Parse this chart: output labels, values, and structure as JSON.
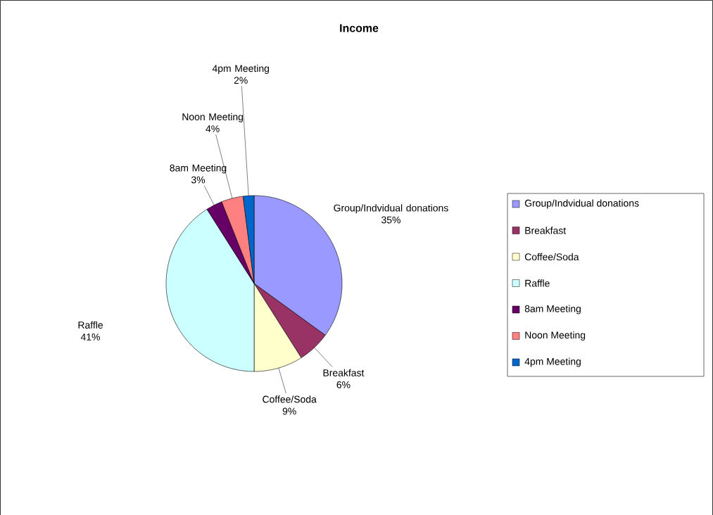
{
  "chart_data": {
    "type": "pie",
    "title": "Income",
    "categories": [
      "Group/Indvidual donations",
      "Breakfast",
      "Coffee/Soda",
      "Raffle",
      "8am Meeting",
      "Noon Meeting",
      "4pm Meeting"
    ],
    "values": [
      35,
      6,
      9,
      41,
      3,
      4,
      2
    ],
    "value_labels": [
      "35%",
      "6%",
      "9%",
      "41%",
      "3%",
      "4%",
      "2%"
    ],
    "colors": [
      "#9999ff",
      "#993366",
      "#ffffcc",
      "#ccffff",
      "#660066",
      "#ff8080",
      "#0066cc"
    ],
    "legend": "right"
  }
}
